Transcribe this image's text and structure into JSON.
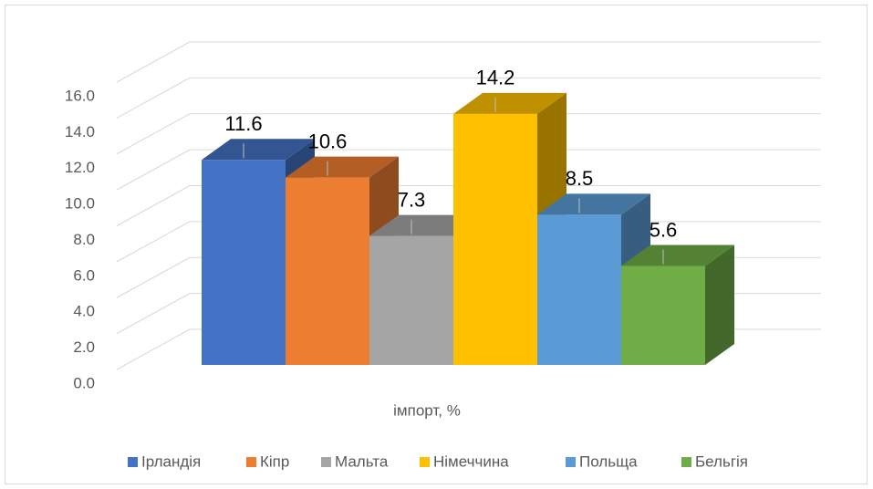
{
  "chart_data": {
    "type": "bar3d",
    "categories": [
      "імпорт, %"
    ],
    "series": [
      {
        "name": "Ірландія",
        "color": "#4472c4",
        "values": [
          11.6
        ]
      },
      {
        "name": "Кіпр",
        "color": "#ed7d31",
        "values": [
          10.6
        ]
      },
      {
        "name": "Мальта",
        "color": "#a5a5a5",
        "values": [
          7.3
        ]
      },
      {
        "name": "Німеччина",
        "color": "#ffc000",
        "values": [
          14.2
        ]
      },
      {
        "name": "Польща",
        "color": "#5b9bd5",
        "values": [
          8.5
        ]
      },
      {
        "name": "Бельгія",
        "color": "#70ad47",
        "values": [
          5.6
        ]
      }
    ],
    "ylim": [
      0,
      16
    ],
    "yticks": [
      {
        "value": 0,
        "label": "0.0"
      },
      {
        "value": 2,
        "label": "2.0"
      },
      {
        "value": 4,
        "label": "4.0"
      },
      {
        "value": 6,
        "label": "6.0"
      },
      {
        "value": 8,
        "label": "8.0"
      },
      {
        "value": 10,
        "label": "10.0"
      },
      {
        "value": 12,
        "label": "12.0"
      },
      {
        "value": 14,
        "label": "14.0"
      },
      {
        "value": 16,
        "label": "16.0"
      }
    ],
    "grid": true,
    "legend": "bottom"
  }
}
